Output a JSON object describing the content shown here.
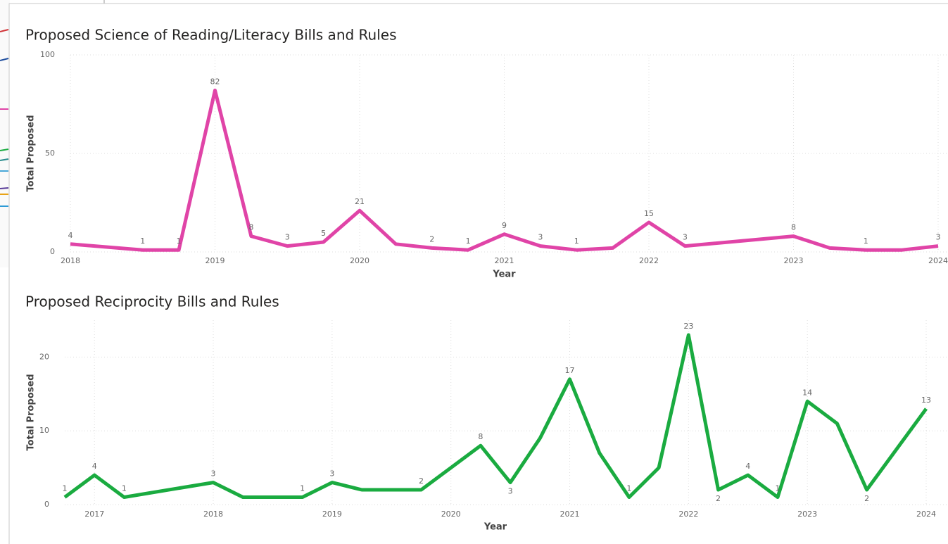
{
  "chart_data": [
    {
      "type": "line",
      "title": "Proposed Science of Reading/Literacy Bills and Rules",
      "x_label": "Year",
      "y_label": "Total Proposed",
      "x": [
        2018,
        2018.5,
        2018.75,
        2019,
        2019.25,
        2019.5,
        2019.75,
        2020,
        2020.25,
        2020.5,
        2020.75,
        2021,
        2021.25,
        2021.5,
        2021.75,
        2022,
        2022.25,
        2023,
        2023.25,
        2023.5,
        2023.75,
        2024
      ],
      "series": [
        {
          "name": "Total Proposed",
          "color": "#e044a7",
          "values": [
            4,
            1,
            1,
            82,
            8,
            3,
            5,
            21,
            4,
            2,
            1,
            9,
            3,
            1,
            2,
            15,
            3,
            8,
            2,
            1,
            1,
            3
          ],
          "value_labels": [
            "4",
            "1",
            "1",
            "82",
            "8",
            "3",
            "5",
            "21",
            null,
            "2",
            "1",
            "9",
            "3",
            "1",
            null,
            "15",
            "3",
            "8",
            null,
            "1",
            null,
            "3"
          ]
        }
      ],
      "xlim": [
        2018,
        2024
      ],
      "xticks": [
        2018,
        2019,
        2020,
        2021,
        2022,
        2023,
        2024
      ],
      "ylim": [
        0,
        100
      ],
      "yticks": [
        0,
        50,
        100
      ],
      "grid": true
    },
    {
      "type": "line",
      "title": "Proposed Reciprocity Bills and Rules",
      "x_label": "Year",
      "y_label": "Total Proposed",
      "x": [
        2016.75,
        2017,
        2017.25,
        2018,
        2018.25,
        2018.75,
        2019,
        2019.25,
        2019.75,
        2020.25,
        2020.5,
        2020.75,
        2021,
        2021.25,
        2021.5,
        2021.75,
        2022,
        2022.25,
        2022.5,
        2022.75,
        2023,
        2023.25,
        2023.5,
        2024
      ],
      "series": [
        {
          "name": "Total Proposed",
          "color": "#1aab40",
          "values": [
            1,
            4,
            1,
            3,
            1,
            1,
            3,
            2,
            2,
            8,
            3,
            9,
            17,
            7,
            1,
            5,
            23,
            2,
            4,
            1,
            14,
            11,
            2,
            13
          ],
          "value_labels": [
            "1",
            "4",
            "1",
            "3",
            null,
            "1",
            "3",
            null,
            "2",
            "8",
            "3",
            null,
            "17",
            null,
            "1",
            null,
            "23",
            "2",
            "4",
            "1",
            "14",
            null,
            "2",
            "13"
          ]
        }
      ],
      "xlim": [
        2016.75,
        2024
      ],
      "xticks": [
        2017,
        2018,
        2019,
        2020,
        2021,
        2022,
        2023,
        2024
      ],
      "ylim": [
        0,
        25
      ],
      "yticks": [
        0,
        10,
        20
      ],
      "grid": true
    }
  ]
}
